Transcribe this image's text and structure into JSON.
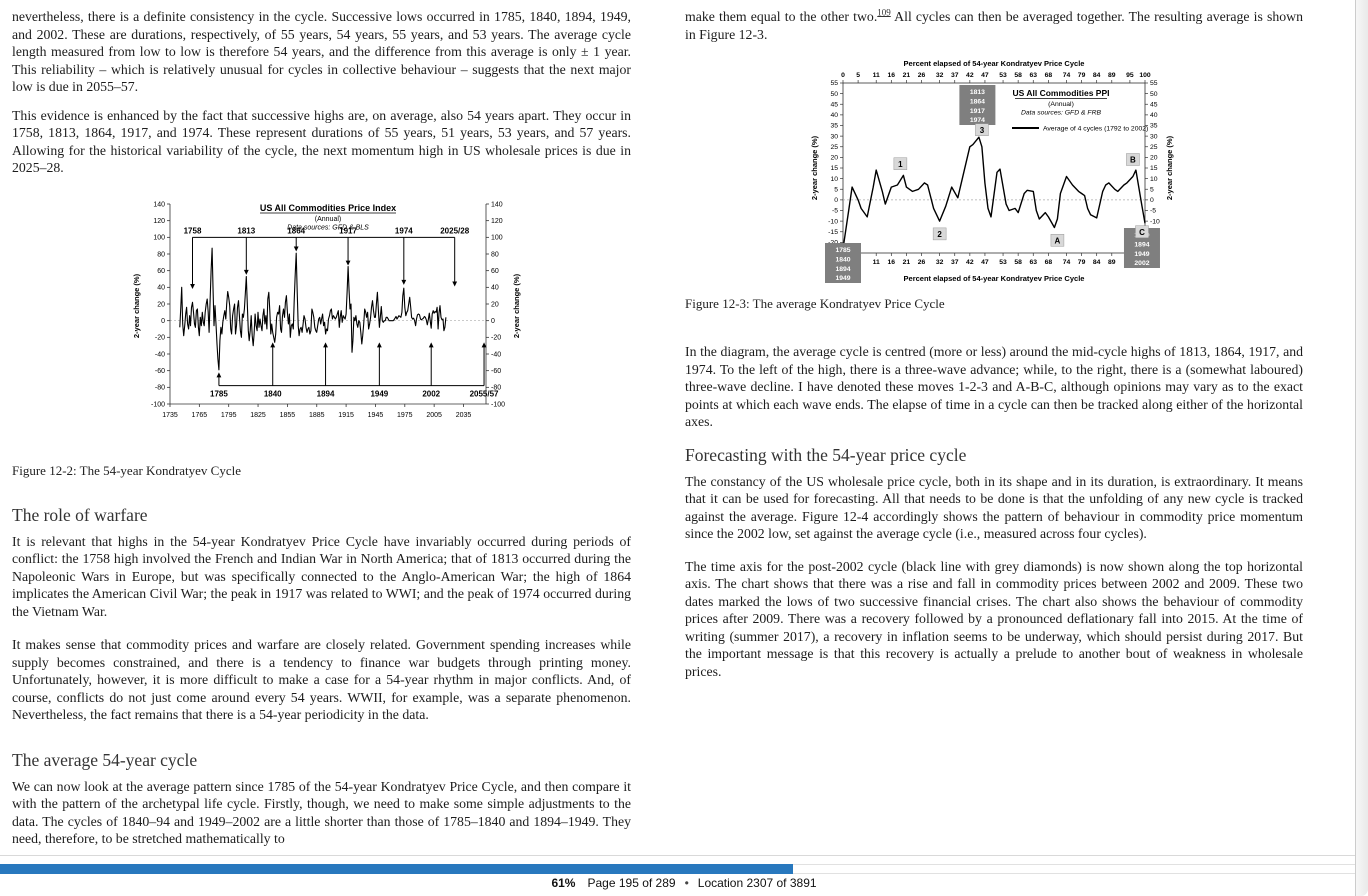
{
  "left_column": {
    "para1": "nevertheless, there is a definite consistency in the cycle. Successive lows occurred in 1785, 1840, 1894, 1949, and 2002. These are durations, respectively, of 55 years, 54 years, 55 years, and 53 years. The average cycle length measured from low to low is therefore 54 years, and the difference from this average is only ± 1 year. This reliability – which is relatively unusual for cycles in collective behaviour – suggests that the next major low is due in 2055–57.",
    "para2": "This evidence is enhanced by the fact that successive highs are, on average, also 54 years apart. They occur in 1758, 1813, 1864, 1917, and 1974. These represent durations of 55 years, 51 years, 53 years, and 57 years. Allowing for the historical variability of the cycle, the next momentum high in US wholesale prices is due in 2025–28.",
    "figure2_caption": "Figure 12-2: The 54-year Kondratyev Cycle",
    "heading_warfare": "The role of warfare",
    "para3": "It is relevant that highs in the 54-year Kondratyev Price Cycle have invariably occurred during periods of conflict: the 1758 high involved the French and Indian War in North America; that of 1813 occurred during the Napoleonic Wars in Europe, but was specifically connected to the Anglo-American War; the high of 1864 implicates the American Civil War; the peak in 1917 was related to WWI; and the peak of 1974 occurred during the Vietnam War.",
    "para4": "It makes sense that commodity prices and warfare are closely related. Government spending increases while supply becomes constrained, and there is a tendency to finance war budgets through printing money. Unfortunately, however, it is more difficult to make a case for a 54-year rhythm in major conflicts. And, of course, conflicts do not just come around every 54 years. WWII, for example, was a separate phenomenon. Nevertheless, the fact remains that there is a 54-year periodicity in the data.",
    "heading_average": "The average 54-year cycle",
    "para5": "We can now look at the average pattern since 1785 of the 54-year Kondratyev Price Cycle, and then compare it with the pattern of the archetypal life cycle. Firstly, though, we need to make some simple adjustments to the data. The cycles of 1840–94 and 1949–2002 are a little shorter than those of 1785–1840 and 1894–1949. They need, therefore, to be stretched mathematically to"
  },
  "right_column": {
    "para1_pre": "make them equal to the other two.",
    "footnote_ref": "109",
    "para1_post": " All cycles can then be averaged together. The resulting average is shown in Figure 12-3.",
    "figure3_caption": "Figure 12-3: The average Kondratyev Price Cycle",
    "para2": "In the diagram, the average cycle is centred (more or less) around the mid-cycle highs of 1813, 1864, 1917, and 1974. To the left of the high, there is a three-wave advance; while, to the right, there is a (somewhat laboured) three-wave decline. I have denoted these moves 1-2-3 and A-B-C, although opinions may vary as to the exact points at which each wave ends. The elapse of time in a cycle can then be tracked along either of the horizontal axes.",
    "heading_forecasting": "Forecasting with the 54-year price cycle",
    "para3": "The constancy of the US wholesale price cycle, both in its shape and in its duration, is extraordinary. It means that it can be used for forecasting. All that needs to be done is that the unfolding of any new cycle is tracked against the average. Figure 12-4 accordingly shows the pattern of behaviour in commodity price momentum since the 2002 low, set against the average cycle (i.e., measured across four cycles).",
    "para4": "The time axis for the post-2002 cycle (black line with grey diamonds) is now shown along the top horizontal axis. The chart shows that there was a rise and fall in commodity prices between 2002 and 2009. These two dates marked the lows of two successive financial crises. The chart also shows the behaviour of commodity prices after 2009. There was a recovery followed by a pronounced deflationary fall into 2015. At the time of writing (summer 2017), a recovery in inflation seems to be underway, which should persist during 2017. But the important message is that this recovery is actually a prelude to another bout of weakness in wholesale prices."
  },
  "footer": {
    "percent": "61%",
    "page_label": "Page 195 of 289",
    "separator": "•",
    "location_label": "Location 2307 of 3891",
    "progress_fill_ratio": 0.58,
    "progress_color": "#2878be"
  },
  "chart_data": [
    {
      "type": "line",
      "title": "US All Commodities Price Index",
      "subtitle": "(Annual)",
      "source": "Data sources: GFD & BLS",
      "ylabel_left": "2-year change (%)",
      "ylabel_right": "2-year change (%)",
      "ylim": [
        -100,
        140
      ],
      "ytick_step": 20,
      "xlim": [
        1735,
        2058
      ],
      "xticks": [
        1735,
        1765,
        1795,
        1825,
        1855,
        1885,
        1915,
        1945,
        1975,
        2005,
        2035
      ],
      "grid": "zero-line only, dashed",
      "highs": {
        "years": [
          1758,
          1813,
          1864,
          1917,
          1974,
          2026
        ],
        "labels": [
          "1758",
          "1813",
          "1864",
          "1917",
          "1974",
          "2025/28"
        ],
        "bracket_level": 100,
        "arrow_tips": [
          38,
          55,
          83,
          66,
          43,
          41
        ]
      },
      "lows": {
        "years": [
          1785,
          1840,
          1894,
          1949,
          2002,
          2056
        ],
        "labels": [
          "1785",
          "1840",
          "1894",
          "1949",
          "2002",
          "2055/57"
        ],
        "bracket_level": -78,
        "arrow_tips": [
          -62,
          -26,
          -26,
          -26,
          -26,
          -26
        ]
      },
      "series": [
        {
          "name": "US All Commodities Price Index, 2-year change (%)",
          "x_start": 1745,
          "x_step": 1,
          "values": [
            -8,
            16,
            40,
            -4,
            -18,
            -6,
            8,
            16,
            -4,
            -10,
            6,
            -6,
            16,
            22,
            10,
            -4,
            -8,
            12,
            14,
            -8,
            -18,
            4,
            -6,
            10,
            -2,
            -6,
            10,
            20,
            26,
            10,
            -14,
            24,
            60,
            87,
            40,
            -6,
            18,
            -4,
            -28,
            -46,
            -59,
            -24,
            -8,
            -16,
            -2,
            6,
            12,
            2,
            20,
            35,
            28,
            18,
            -10,
            -16,
            6,
            14,
            20,
            -16,
            -6,
            16,
            24,
            4,
            -12,
            -20,
            8,
            4,
            14,
            32,
            53,
            20,
            -12,
            -24,
            -12,
            6,
            -18,
            -30,
            -16,
            8,
            -6,
            -12,
            10,
            -8,
            2,
            -6,
            -12,
            6,
            14,
            -4,
            6,
            -10,
            26,
            34,
            12,
            -16,
            -4,
            -14,
            -20,
            -26,
            -16,
            4,
            10,
            8,
            18,
            -10,
            -14,
            6,
            14,
            4,
            22,
            30,
            10,
            -4,
            8,
            -20,
            -6,
            -4,
            -10,
            24,
            55,
            81,
            35,
            -6,
            -18,
            -10,
            -8,
            -14,
            -4,
            6,
            2,
            -8,
            -14,
            -10,
            -8,
            -16,
            -12,
            14,
            10,
            4,
            -8,
            -12,
            -14,
            -6,
            2,
            4,
            -4,
            2,
            8,
            -6,
            -2,
            -16,
            -10,
            -12,
            2,
            6,
            12,
            14,
            2,
            6,
            4,
            2,
            4,
            8,
            12,
            -8,
            4,
            12,
            -2,
            6,
            4,
            2,
            8,
            34,
            65,
            38,
            14,
            20,
            -38,
            -24,
            4,
            0,
            6,
            -4,
            -8,
            0,
            -2,
            -14,
            -28,
            -18,
            -4,
            14,
            10,
            4,
            10,
            -10,
            -4,
            4,
            16,
            24,
            12,
            4,
            4,
            20,
            34,
            12,
            -8,
            4,
            17,
            0,
            -2,
            0,
            0,
            4,
            4,
            2,
            0,
            0,
            0,
            0,
            0,
            1,
            3,
            5,
            2,
            4,
            6,
            5,
            4,
            10,
            30,
            39,
            16,
            6,
            10,
            12,
            20,
            28,
            16,
            4,
            2,
            3,
            0,
            -6,
            2,
            7,
            8,
            7,
            2,
            1,
            2,
            3,
            5,
            4,
            1,
            -5,
            1,
            9,
            0,
            -9,
            8,
            12,
            9,
            11,
            10,
            16,
            -10,
            9,
            18,
            4,
            1,
            2,
            -12,
            -8,
            4
          ]
        }
      ]
    },
    {
      "type": "line",
      "title_top": "Percent elapsed of 54-year Kondratyev Price Cycle",
      "xlabel_bottom": "Percent elapsed of 54-year Kondratyev Price Cycle",
      "legend_title": "US All Commodities PPI",
      "legend_subtitle": "(Annual)",
      "legend_source": "Data sources: GFD & FRB",
      "legend_series": "Average of 4 cycles (1792 to 2002)",
      "ylabel_left": "2-year change (%)",
      "ylabel_right": "2-year change (%)",
      "ylim": [
        -25,
        55
      ],
      "ytick_step": 5,
      "xticks": [
        0,
        5,
        11,
        16,
        21,
        26,
        32,
        37,
        42,
        47,
        53,
        58,
        63,
        68,
        74,
        79,
        84,
        89,
        95,
        100
      ],
      "grid": "zero-line only, dashed",
      "wave_labels": [
        {
          "text": "1",
          "x": 19,
          "y": 17
        },
        {
          "text": "2",
          "x": 32,
          "y": -16
        },
        {
          "text": "3",
          "x": 46,
          "y": 33
        },
        {
          "text": "A",
          "x": 71,
          "y": -19
        },
        {
          "text": "B",
          "x": 96,
          "y": 19
        },
        {
          "text": "C",
          "x": 99,
          "y": -15
        }
      ],
      "year_boxes": [
        {
          "position": "top",
          "years": [
            "1813",
            "1864",
            "1917",
            "1974"
          ]
        },
        {
          "position": "bottom-left",
          "years": [
            "1785",
            "1840",
            "1894",
            "1949"
          ]
        },
        {
          "position": "bottom-right",
          "years": [
            "1840",
            "1894",
            "1949",
            "2002"
          ]
        }
      ],
      "series": [
        {
          "name": "Average of 4 cycles (1792 to 2002)",
          "points": [
            [
              0,
              -23
            ],
            [
              2,
              -4
            ],
            [
              3,
              6
            ],
            [
              5,
              0
            ],
            [
              6,
              -4
            ],
            [
              8,
              -8
            ],
            [
              10,
              6
            ],
            [
              11,
              14
            ],
            [
              13,
              4
            ],
            [
              14,
              -2
            ],
            [
              16,
              6
            ],
            [
              18,
              7
            ],
            [
              20,
              11.5
            ],
            [
              21,
              6
            ],
            [
              23,
              4
            ],
            [
              25,
              5
            ],
            [
              27,
              8
            ],
            [
              28,
              7
            ],
            [
              30,
              -4
            ],
            [
              32,
              -10
            ],
            [
              34,
              -3
            ],
            [
              36,
              6
            ],
            [
              38,
              1
            ],
            [
              40,
              13
            ],
            [
              42,
              25
            ],
            [
              43,
              26
            ],
            [
              45,
              29.5
            ],
            [
              46,
              25
            ],
            [
              47,
              8
            ],
            [
              48,
              -4
            ],
            [
              49,
              -8
            ],
            [
              51,
              13
            ],
            [
              52,
              14.5
            ],
            [
              54,
              -2
            ],
            [
              55,
              -5
            ],
            [
              57,
              -4
            ],
            [
              58,
              -6
            ],
            [
              60,
              3
            ],
            [
              61,
              4.5
            ],
            [
              63,
              4
            ],
            [
              64,
              -5
            ],
            [
              65,
              -9
            ],
            [
              67,
              -6
            ],
            [
              68,
              -8
            ],
            [
              70,
              -13
            ],
            [
              71,
              -9
            ],
            [
              72,
              3
            ],
            [
              74,
              11
            ],
            [
              76,
              7
            ],
            [
              78,
              4
            ],
            [
              79,
              3
            ],
            [
              80,
              2
            ],
            [
              81,
              -4
            ],
            [
              82,
              -7
            ],
            [
              84,
              -8.5
            ],
            [
              86,
              4
            ],
            [
              87,
              7
            ],
            [
              88,
              8
            ],
            [
              90,
              5
            ],
            [
              91,
              4
            ],
            [
              93,
              7
            ],
            [
              94,
              8
            ],
            [
              96,
              11
            ],
            [
              97,
              14
            ],
            [
              99,
              -3
            ],
            [
              100,
              -11
            ]
          ]
        }
      ]
    }
  ]
}
